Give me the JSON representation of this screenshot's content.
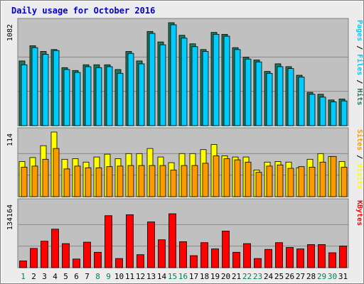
{
  "title": "Daily usage for October 2016",
  "chart_data": [
    {
      "type": "bar",
      "legend": [
        "Pages",
        "Files",
        "Hits"
      ],
      "legend_separator": "/",
      "colors": {
        "Hits": "#1e7a5a",
        "Files": "#00ccff",
        "Pages": "#00ccff",
        "separator": "#000000"
      },
      "ymax_label": "1082",
      "ylim": [
        0,
        1082
      ],
      "categories": [
        "1",
        "2",
        "3",
        "4",
        "5",
        "6",
        "7",
        "8",
        "9",
        "10",
        "11",
        "12",
        "13",
        "14",
        "15",
        "16",
        "17",
        "18",
        "19",
        "20",
        "21",
        "22",
        "23",
        "24",
        "25",
        "26",
        "27",
        "28",
        "29",
        "30",
        "31"
      ],
      "series": [
        {
          "name": "Hits",
          "values": [
            680,
            840,
            780,
            800,
            610,
            580,
            640,
            640,
            640,
            590,
            780,
            680,
            990,
            880,
            1082,
            950,
            860,
            800,
            980,
            960,
            820,
            720,
            690,
            570,
            650,
            620,
            530,
            350,
            330,
            270,
            280
          ]
        },
        {
          "name": "Files",
          "values": [
            640,
            820,
            750,
            790,
            590,
            560,
            620,
            610,
            620,
            550,
            760,
            650,
            970,
            850,
            1060,
            920,
            830,
            780,
            960,
            940,
            800,
            700,
            670,
            550,
            620,
            600,
            510,
            330,
            300,
            250,
            260
          ]
        }
      ]
    },
    {
      "type": "bar",
      "legend": [
        "Sites",
        "Visits"
      ],
      "legend_separator": "/",
      "colors": {
        "Visits": "#ffff00",
        "Sites": "#ff9900",
        "separator": "#000000"
      },
      "ymax_label": "114",
      "ylim": [
        0,
        114
      ],
      "categories": [
        "1",
        "2",
        "3",
        "4",
        "5",
        "6",
        "7",
        "8",
        "9",
        "10",
        "11",
        "12",
        "13",
        "14",
        "15",
        "16",
        "17",
        "18",
        "19",
        "20",
        "21",
        "22",
        "23",
        "24",
        "25",
        "26",
        "27",
        "28",
        "29",
        "30",
        "31"
      ],
      "series": [
        {
          "name": "Visits",
          "values": [
            62,
            69,
            90,
            114,
            66,
            67,
            61,
            70,
            75,
            67,
            76,
            76,
            85,
            70,
            60,
            76,
            76,
            83,
            92,
            72,
            70,
            70,
            47,
            61,
            62,
            61,
            51,
            66,
            76,
            71,
            62
          ]
        },
        {
          "name": "Sites",
          "values": [
            52,
            54,
            66,
            85,
            49,
            54,
            51,
            51,
            53,
            54,
            55,
            55,
            55,
            55,
            47,
            55,
            55,
            59,
            72,
            67,
            65,
            61,
            43,
            54,
            56,
            50,
            53,
            52,
            61,
            71,
            52
          ]
        }
      ]
    },
    {
      "type": "bar",
      "legend": [
        "KBytes"
      ],
      "colors": {
        "KBytes": "#ff0000"
      },
      "ymax_label": "134164",
      "ylim": [
        0,
        134164
      ],
      "categories": [
        "1",
        "2",
        "3",
        "4",
        "5",
        "6",
        "7",
        "8",
        "9",
        "10",
        "11",
        "12",
        "13",
        "14",
        "15",
        "16",
        "17",
        "18",
        "19",
        "20",
        "21",
        "22",
        "23",
        "24",
        "25",
        "26",
        "27",
        "28",
        "29",
        "30",
        "31"
      ],
      "series": [
        {
          "name": "KBytes",
          "values": [
            14000,
            40000,
            55000,
            80000,
            50000,
            18000,
            53000,
            32000,
            108000,
            19000,
            110000,
            27000,
            95000,
            58000,
            112000,
            54000,
            25000,
            52000,
            39000,
            76000,
            32000,
            50000,
            19000,
            38000,
            52000,
            42000,
            39000,
            48000,
            48000,
            31000,
            45000
          ]
        }
      ]
    }
  ],
  "x_label_colors": {
    "weekday": "#000000",
    "weekend": "#00805a"
  },
  "weekend_days": [
    "1",
    "8",
    "9",
    "15",
    "16",
    "22",
    "23",
    "29",
    "30"
  ]
}
